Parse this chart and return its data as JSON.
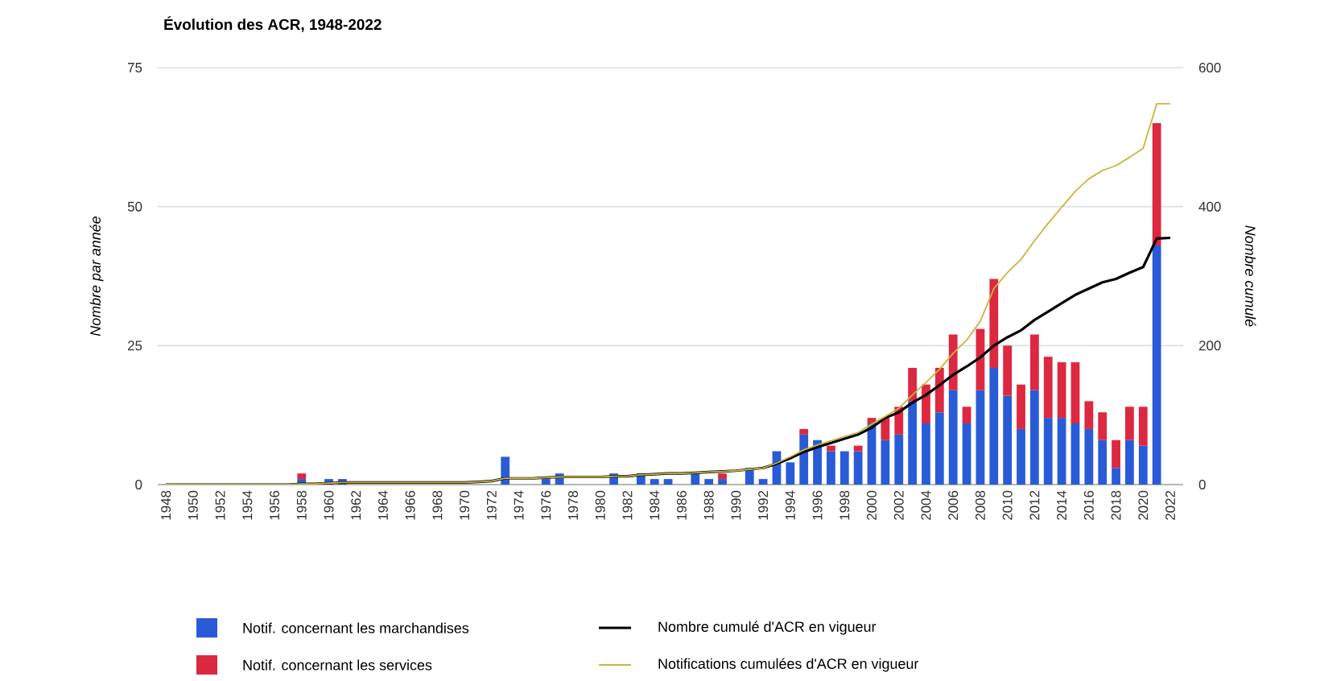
{
  "chart_data": {
    "type": "bar",
    "title": "Évolution des ACR, 1948-2022",
    "ylabel": "Nombre par année",
    "y2label": "Nombre cumulé",
    "categories": [
      "1948",
      null,
      "1950",
      null,
      "1952",
      null,
      "1954",
      null,
      "1956",
      null,
      "1958",
      null,
      "1960",
      null,
      "1962",
      null,
      "1964",
      null,
      "1966",
      null,
      "1968",
      null,
      "1970",
      null,
      "1972",
      null,
      "1974",
      null,
      "1976",
      null,
      "1978",
      null,
      "1980",
      null,
      "1982",
      null,
      "1984",
      null,
      "1986",
      null,
      "1988",
      null,
      "1990",
      null,
      "1992",
      null,
      "1994",
      null,
      "1996",
      null,
      "1998",
      null,
      "2000",
      null,
      "2002",
      null,
      "2004",
      null,
      "2006",
      null,
      "2008",
      null,
      "2010",
      null,
      "2012",
      null,
      "2014",
      null,
      "2016",
      null,
      "2018",
      null,
      "2020",
      null,
      "2022"
    ],
    "stacked": true,
    "grid": "y",
    "legend": "bottom",
    "ylim": [
      0,
      75
    ],
    "yticks": [
      0,
      25,
      50,
      75
    ],
    "y2lim": [
      0,
      600
    ],
    "y2ticks": [
      0,
      200,
      400,
      600
    ],
    "series": [
      {
        "name": "Notif. concernant les marchandises",
        "color": "#2a5bd7",
        "values": [
          null,
          null,
          null,
          null,
          null,
          null,
          null,
          null,
          null,
          null,
          1,
          null,
          1,
          1,
          null,
          null,
          null,
          null,
          null,
          null,
          null,
          null,
          null,
          null,
          null,
          5,
          null,
          null,
          1,
          2,
          null,
          null,
          null,
          2,
          null,
          2,
          1,
          1,
          null,
          2,
          1,
          1,
          null,
          3,
          1,
          6,
          4,
          9,
          8,
          6,
          6,
          6,
          11,
          8,
          9,
          15,
          11,
          13,
          17,
          11,
          17,
          21,
          16,
          10,
          17,
          12,
          12,
          11,
          10,
          8,
          3,
          8,
          7,
          43,
          null
        ]
      },
      {
        "name": "Notif. concernant les services",
        "color": "#dc2840",
        "values": [
          null,
          null,
          null,
          null,
          null,
          null,
          null,
          null,
          null,
          null,
          1,
          null,
          null,
          null,
          null,
          null,
          null,
          null,
          null,
          null,
          null,
          null,
          null,
          null,
          null,
          null,
          null,
          null,
          null,
          null,
          null,
          null,
          null,
          null,
          null,
          null,
          null,
          null,
          null,
          null,
          null,
          1,
          null,
          null,
          null,
          null,
          null,
          1,
          null,
          1,
          null,
          1,
          1,
          4,
          5,
          6,
          7,
          8,
          10,
          3,
          11,
          16,
          9,
          8,
          10,
          11,
          10,
          11,
          5,
          5,
          5,
          6,
          7,
          22,
          null
        ]
      },
      {
        "name": "Nombre cumulé d'ACR en vigueur",
        "type": "line",
        "axis": "y2",
        "color": "#000000",
        "values": [
          0,
          0,
          0,
          0,
          0,
          0,
          0,
          0,
          0,
          0,
          1,
          1,
          2,
          3,
          3,
          3,
          3,
          3,
          3,
          3,
          3,
          3,
          3,
          4,
          5,
          9,
          9,
          9,
          10,
          11,
          11,
          11,
          11,
          12,
          12,
          14,
          15,
          16,
          16,
          17,
          18,
          19,
          20,
          22,
          24,
          30,
          38,
          47,
          54,
          60,
          66,
          72,
          82,
          96,
          104,
          118,
          129,
          143,
          158,
          170,
          183,
          200,
          212,
          222,
          237,
          249,
          261,
          273,
          282,
          291,
          296,
          305,
          313,
          354,
          355
        ]
      },
      {
        "name": "Notifications cumulées d'ACR en vigueur",
        "type": "line",
        "axis": "y2",
        "color": "#c9b53f",
        "values": [
          0,
          0,
          0,
          0,
          0,
          0,
          0,
          0,
          0,
          0,
          1,
          1,
          2,
          3,
          3,
          3,
          3,
          3,
          3,
          3,
          3,
          3,
          3,
          4,
          5,
          9,
          9,
          9,
          10,
          11,
          11,
          11,
          11,
          12,
          12,
          14,
          15,
          16,
          16,
          17,
          18,
          19,
          20,
          22,
          24,
          31,
          40,
          50,
          57,
          63,
          69,
          75,
          87,
          98,
          110,
          129,
          147,
          166,
          189,
          208,
          235,
          282,
          305,
          324,
          351,
          376,
          399,
          422,
          440,
          452,
          459,
          471,
          484,
          548,
          548
        ]
      }
    ]
  }
}
